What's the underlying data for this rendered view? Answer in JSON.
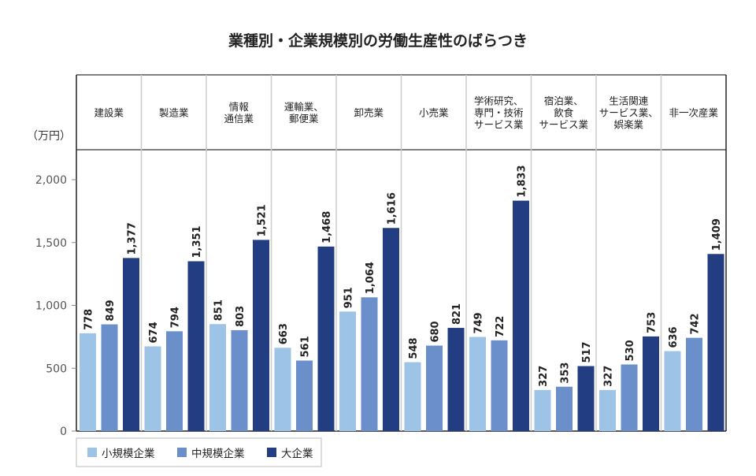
{
  "chart_data": {
    "type": "bar",
    "title": "業種別・企業規模別の労働生産性のばらつき",
    "ylabel": "（万円）",
    "ylim": [
      0,
      2000
    ],
    "yticks": [
      0,
      500,
      1000,
      1500,
      2000
    ],
    "ytick_labels": [
      "0",
      "500",
      "1,000",
      "1,500",
      "2,000"
    ],
    "categories": [
      [
        "建設業"
      ],
      [
        "製造業"
      ],
      [
        "情報",
        "通信業"
      ],
      [
        "運輸業、",
        "郵便業"
      ],
      [
        "卸売業"
      ],
      [
        "小売業"
      ],
      [
        "学術研究、",
        "専門・技術",
        "サービス業"
      ],
      [
        "宿泊業、",
        "飲食",
        "サービス業"
      ],
      [
        "生活関連",
        "サービス業、",
        "娯楽業"
      ],
      [
        "非一次産業"
      ]
    ],
    "series": [
      {
        "name": "小規模企業",
        "color": "#9dc3e6",
        "values": [
          778,
          674,
          851,
          663,
          951,
          548,
          749,
          327,
          327,
          636
        ],
        "labels": [
          "778",
          "674",
          "851",
          "663",
          "951",
          "548",
          "749",
          "327",
          "327",
          "636"
        ]
      },
      {
        "name": "中規模企業",
        "color": "#6a8fca",
        "values": [
          849,
          794,
          803,
          561,
          1064,
          680,
          722,
          353,
          530,
          742
        ],
        "labels": [
          "849",
          "794",
          "803",
          "561",
          "1,064",
          "680",
          "722",
          "353",
          "530",
          "742"
        ]
      },
      {
        "name": "大企業",
        "color": "#223d82",
        "values": [
          1377,
          1351,
          1521,
          1468,
          1616,
          821,
          1833,
          517,
          753,
          1409
        ],
        "labels": [
          "1,377",
          "1,351",
          "1,521",
          "1,468",
          "1,616",
          "821",
          "1,833",
          "517",
          "753",
          "1,409"
        ]
      }
    ],
    "legend": "bottom-left",
    "grid": false
  }
}
